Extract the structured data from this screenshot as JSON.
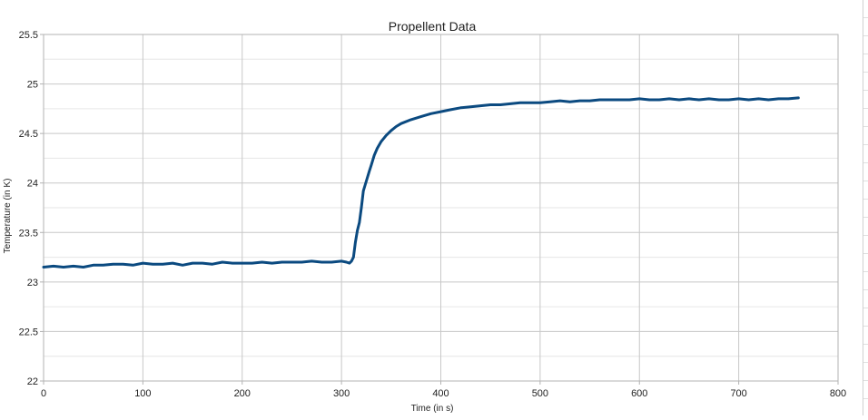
{
  "chart_data": {
    "type": "line",
    "title": "Propellent Data",
    "xlabel": "Time (in s)",
    "ylabel": "Temperature (in K)",
    "xlim": [
      0,
      800
    ],
    "ylim": [
      22,
      25.5
    ],
    "x_ticks": [
      0,
      100,
      200,
      300,
      400,
      500,
      600,
      700,
      800
    ],
    "y_ticks": [
      22,
      22.5,
      23,
      23.5,
      24,
      24.5,
      25,
      25.5
    ],
    "x_tick_labels": [
      "0",
      "100",
      "200",
      "300",
      "400",
      "500",
      "600",
      "700",
      "800"
    ],
    "y_tick_labels": [
      "22",
      "22.5",
      "23",
      "23.5",
      "24",
      "24.5",
      "25",
      "25.5"
    ],
    "grid": true,
    "legend": "none",
    "series": [
      {
        "color": "#0b4a80",
        "x": [
          0,
          10,
          20,
          30,
          40,
          50,
          60,
          70,
          80,
          90,
          100,
          110,
          120,
          130,
          140,
          150,
          160,
          170,
          180,
          190,
          200,
          210,
          220,
          230,
          240,
          250,
          260,
          270,
          280,
          290,
          300,
          305,
          308,
          310,
          312,
          314,
          316,
          318,
          320,
          322,
          325,
          328,
          330,
          333,
          336,
          340,
          345,
          350,
          355,
          360,
          370,
          380,
          390,
          400,
          410,
          420,
          430,
          440,
          450,
          460,
          470,
          480,
          490,
          500,
          510,
          520,
          530,
          540,
          550,
          560,
          570,
          580,
          590,
          600,
          610,
          620,
          630,
          640,
          650,
          660,
          670,
          680,
          690,
          700,
          710,
          720,
          730,
          740,
          750,
          760
        ],
        "y": [
          23.15,
          23.16,
          23.15,
          23.16,
          23.15,
          23.17,
          23.17,
          23.18,
          23.18,
          23.17,
          23.19,
          23.18,
          23.18,
          23.19,
          23.17,
          23.19,
          23.19,
          23.18,
          23.2,
          23.19,
          23.19,
          23.19,
          23.2,
          23.19,
          23.2,
          23.2,
          23.2,
          23.21,
          23.2,
          23.2,
          23.21,
          23.2,
          23.19,
          23.21,
          23.25,
          23.4,
          23.52,
          23.6,
          23.75,
          23.92,
          24.02,
          24.12,
          24.18,
          24.28,
          24.35,
          24.42,
          24.48,
          24.53,
          24.57,
          24.6,
          24.64,
          24.67,
          24.7,
          24.72,
          24.74,
          24.76,
          24.77,
          24.78,
          24.79,
          24.79,
          24.8,
          24.81,
          24.81,
          24.81,
          24.82,
          24.83,
          24.82,
          24.83,
          24.83,
          24.84,
          24.84,
          24.84,
          24.84,
          24.85,
          24.84,
          24.84,
          24.85,
          24.84,
          24.85,
          24.84,
          24.85,
          24.84,
          24.84,
          24.85,
          24.84,
          24.85,
          24.84,
          24.85,
          24.85,
          24.86
        ]
      }
    ]
  }
}
